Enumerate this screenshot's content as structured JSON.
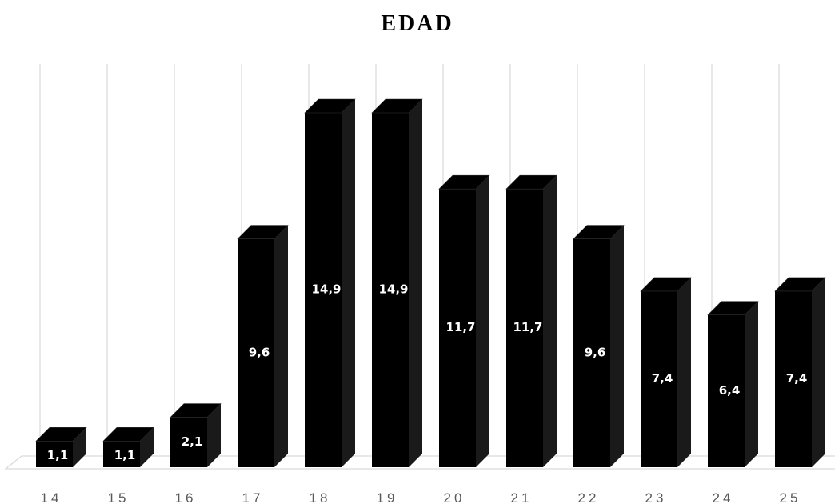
{
  "chart_data": {
    "type": "bar",
    "title": "EDAD",
    "xlabel": "",
    "ylabel": "",
    "categories": [
      "14",
      "15",
      "16",
      "17",
      "18",
      "19",
      "20",
      "21",
      "22",
      "23",
      "24",
      "25"
    ],
    "values": [
      1.1,
      1.1,
      2.1,
      9.6,
      14.9,
      14.9,
      11.7,
      11.7,
      9.6,
      7.4,
      6.4,
      7.4
    ],
    "data_labels": [
      "1,1",
      "1,1",
      "2,1",
      "9,6",
      "14,9",
      "14,9",
      "11,7",
      "11,7",
      "9,6",
      "7,4",
      "6,4",
      "7,4"
    ],
    "ylim": [
      0,
      16
    ],
    "grid": "vertical",
    "style": "3d-column",
    "bar_color": "#000000",
    "grid_color": "#d9d9d9"
  }
}
